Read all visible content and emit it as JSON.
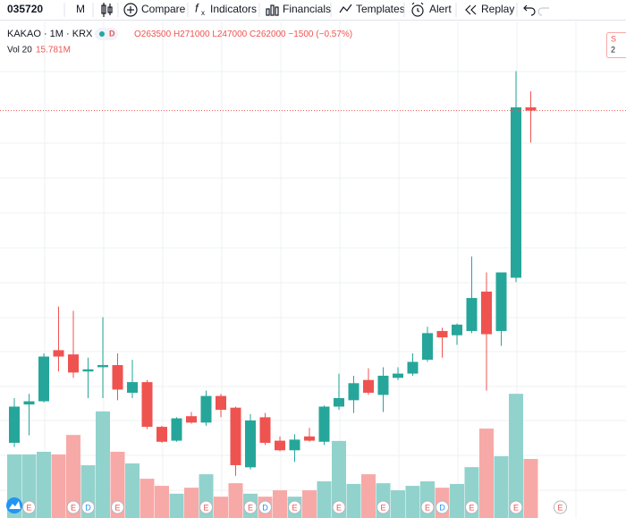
{
  "toolbar": {
    "symbol": "035720",
    "interval": "M",
    "items": [
      "Compare",
      "Indicators",
      "Financials",
      "Templates",
      "Alert",
      "Replay"
    ]
  },
  "legend": {
    "name": "KAKAO · 1M · KRX",
    "badge": "D",
    "open": "O263500",
    "high": "H271000",
    "low": "L247000",
    "close": "C262000",
    "change": "−1500 (−0.57%)",
    "volume_name": "Vol 20",
    "volume_value": "15.781M"
  },
  "side_badge": [
    "S",
    "2"
  ],
  "chart_data": {
    "type": "candlestick",
    "up_color": "#26a69a",
    "down_color": "#ef5350",
    "up_volume_color": "#92d2cc",
    "down_volume_color": "#f7a9a7",
    "ylim": [
      70700,
      301300
    ],
    "open": [
      106000,
      124000,
      125500,
      149500,
      147500,
      139500,
      141500,
      142500,
      129500,
      134500,
      113500,
      107000,
      118500,
      115500,
      128000,
      122500,
      94500,
      118000,
      107000,
      102500,
      109000,
      106500,
      123000,
      126000,
      135500,
      128500,
      136500,
      138500,
      145000,
      158500,
      156500,
      158500,
      177000,
      158500,
      183500,
      263500
    ],
    "high": [
      127000,
      129000,
      148000,
      170000,
      168000,
      146000,
      165000,
      148000,
      145000,
      135500,
      114000,
      118000,
      120500,
      130500,
      129000,
      123000,
      119500,
      120000,
      109000,
      110000,
      113000,
      123500,
      138500,
      137500,
      141000,
      141500,
      141500,
      148000,
      160500,
      160000,
      162000,
      193500,
      186000,
      186000,
      280500,
      271000
    ],
    "low": [
      104000,
      109500,
      125000,
      139500,
      136500,
      127000,
      127000,
      126000,
      127000,
      112500,
      106000,
      106500,
      115000,
      114000,
      118000,
      90500,
      93500,
      105000,
      102000,
      97000,
      106500,
      105000,
      121500,
      120000,
      128500,
      120500,
      135500,
      137500,
      144000,
      146000,
      152000,
      157500,
      130500,
      151500,
      181500,
      247000
    ],
    "close": [
      123000,
      125500,
      146500,
      146500,
      139000,
      140500,
      142500,
      131000,
      134500,
      113500,
      106500,
      117500,
      115500,
      128000,
      121500,
      95500,
      116500,
      106000,
      102500,
      107500,
      107000,
      123000,
      127000,
      134000,
      129500,
      137500,
      138500,
      144000,
      157500,
      155500,
      161500,
      174000,
      157000,
      186000,
      263500,
      262000
    ],
    "volume": [
      17000000,
      17000000,
      17700000,
      17000000,
      22200000,
      14100000,
      28500000,
      17700000,
      14600000,
      10500000,
      8600000,
      6500000,
      8100000,
      11700000,
      5700000,
      9300000,
      6500000,
      5700000,
      7400000,
      5700000,
      7400000,
      9800000,
      20600000,
      9100000,
      11700000,
      9300000,
      7400000,
      8600000,
      9800000,
      8100000,
      9100000,
      13600000,
      23900000,
      16500000,
      33200000,
      15781000
    ],
    "y2lim": [
      0,
      131300000
    ],
    "events": [
      {
        "bar": 1,
        "label": "E",
        "color": "#ef5350"
      },
      {
        "bar": 4,
        "label": "E",
        "color": "#ef5350"
      },
      {
        "bar": 5,
        "label": "D",
        "color": "#2196f3"
      },
      {
        "bar": 7,
        "label": "E",
        "color": "#ef5350"
      },
      {
        "bar": 13,
        "label": "E",
        "color": "#ef5350"
      },
      {
        "bar": 16,
        "label": "E",
        "color": "#ef5350"
      },
      {
        "bar": 17,
        "label": "D",
        "color": "#2196f3"
      },
      {
        "bar": 19,
        "label": "E",
        "color": "#ef5350"
      },
      {
        "bar": 22,
        "label": "E",
        "color": "#ef5350"
      },
      {
        "bar": 25,
        "label": "E",
        "color": "#ef5350"
      },
      {
        "bar": 28,
        "label": "E",
        "color": "#ef5350"
      },
      {
        "bar": 29,
        "label": "D",
        "color": "#2196f3"
      },
      {
        "bar": 31,
        "label": "E",
        "color": "#ef5350"
      },
      {
        "bar": 34,
        "label": "E",
        "color": "#ef5350"
      },
      {
        "bar": 37,
        "label": "E",
        "color": "#ef5350"
      }
    ]
  }
}
